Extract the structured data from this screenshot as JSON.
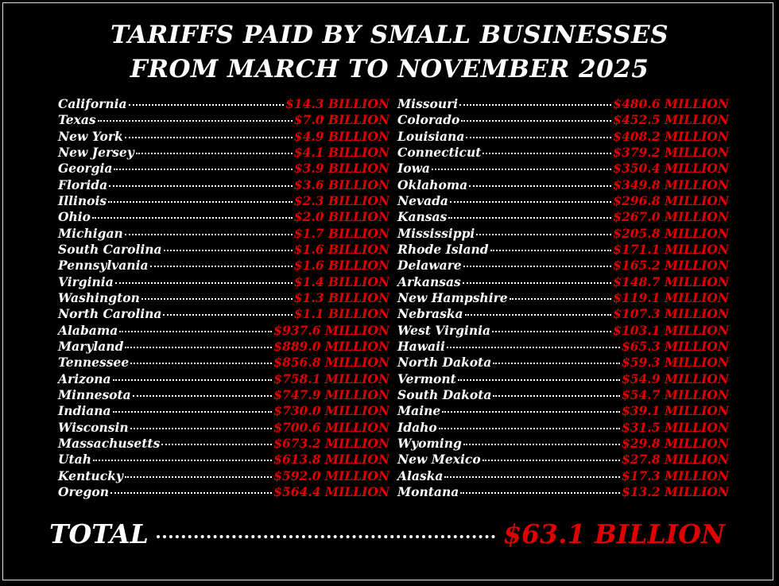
{
  "title": {
    "line1": "TARIFFS PAID BY SMALL BUSINESSES",
    "line2": "FROM MARCH TO NOVEMBER 2025"
  },
  "left_column": [
    {
      "state": "California",
      "amount": "$14.3 BILLION"
    },
    {
      "state": "Texas",
      "amount": "$7.0 BILLION"
    },
    {
      "state": "New York",
      "amount": "$4.9 BILLION"
    },
    {
      "state": "New Jersey",
      "amount": "$4.1 BILLION"
    },
    {
      "state": "Georgia",
      "amount": "$3.9 BILLION"
    },
    {
      "state": "Florida",
      "amount": "$3.6 BILLION"
    },
    {
      "state": "Illinois",
      "amount": "$2.3 BILLION"
    },
    {
      "state": "Ohio",
      "amount": "$2.0 BILLION"
    },
    {
      "state": "Michigan",
      "amount": "$1.7 BILLION"
    },
    {
      "state": "South Carolina",
      "amount": "$1.6 BILLION"
    },
    {
      "state": "Pennsylvania",
      "amount": "$1.6 BILLION"
    },
    {
      "state": "Virginia",
      "amount": "$1.4 BILLION"
    },
    {
      "state": "Washington",
      "amount": "$1.3 BILLION"
    },
    {
      "state": "North Carolina",
      "amount": "$1.1 BILLION"
    },
    {
      "state": "Alabama",
      "amount": "$937.6 MILLION"
    },
    {
      "state": "Maryland",
      "amount": "$889.0 MILLION"
    },
    {
      "state": "Tennessee",
      "amount": "$856.8 MILLION"
    },
    {
      "state": "Arizona",
      "amount": "$758.1 MILLION"
    },
    {
      "state": "Minnesota",
      "amount": "$747.9 MILLION"
    },
    {
      "state": "Indiana",
      "amount": "$730.0 MILLION"
    },
    {
      "state": "Wisconsin",
      "amount": "$700.6 MILLION"
    },
    {
      "state": "Massachusetts",
      "amount": "$673.2 MILLION"
    },
    {
      "state": "Utah",
      "amount": "$613.8 MILLION"
    },
    {
      "state": "Kentucky",
      "amount": "$592.0 MILLION"
    },
    {
      "state": "Oregon",
      "amount": "$564.4 MILLION"
    }
  ],
  "right_column": [
    {
      "state": "Missouri",
      "amount": "$480.6 MILLION"
    },
    {
      "state": "Colorado",
      "amount": "$452.5 MILLION"
    },
    {
      "state": "Louisiana",
      "amount": "$408.2 MILLION"
    },
    {
      "state": "Connecticut",
      "amount": "$379.2 MILLION"
    },
    {
      "state": "Iowa",
      "amount": "$350.4 MILLION"
    },
    {
      "state": "Oklahoma",
      "amount": "$349.8 MILLION"
    },
    {
      "state": "Nevada",
      "amount": "$296.8 MILLION"
    },
    {
      "state": "Kansas",
      "amount": "$267.0 MILLION"
    },
    {
      "state": "Mississippi",
      "amount": "$205.8 MILLION"
    },
    {
      "state": "Rhode Island",
      "amount": "$171.1 MILLION"
    },
    {
      "state": "Delaware",
      "amount": "$165.2 MILLION"
    },
    {
      "state": "Arkansas",
      "amount": "$148.7 MILLION"
    },
    {
      "state": "New Hampshire",
      "amount": "$119.1 MILLION"
    },
    {
      "state": "Nebraska",
      "amount": "$107.3 MILLION"
    },
    {
      "state": "West Virginia",
      "amount": "$103.1 MILLION"
    },
    {
      "state": "Hawaii",
      "amount": "$65.3 MILLION"
    },
    {
      "state": "North Dakota",
      "amount": "$59.3 MILLION"
    },
    {
      "state": "Vermont",
      "amount": "$54.9 MILLION"
    },
    {
      "state": "South Dakota",
      "amount": "$54.7 MILLION"
    },
    {
      "state": "Maine",
      "amount": "$39.1 MILLION"
    },
    {
      "state": "Idaho",
      "amount": "$31.5 MILLION"
    },
    {
      "state": "Wyoming",
      "amount": "$29.8 MILLION"
    },
    {
      "state": "New Mexico",
      "amount": "$27.8 MILLION"
    },
    {
      "state": "Alaska",
      "amount": "$17.3 MILLION"
    },
    {
      "state": "Montana",
      "amount": "$13.2 MILLION"
    }
  ],
  "total": {
    "label": "TOTAL",
    "amount": "$63.1 BILLION"
  }
}
